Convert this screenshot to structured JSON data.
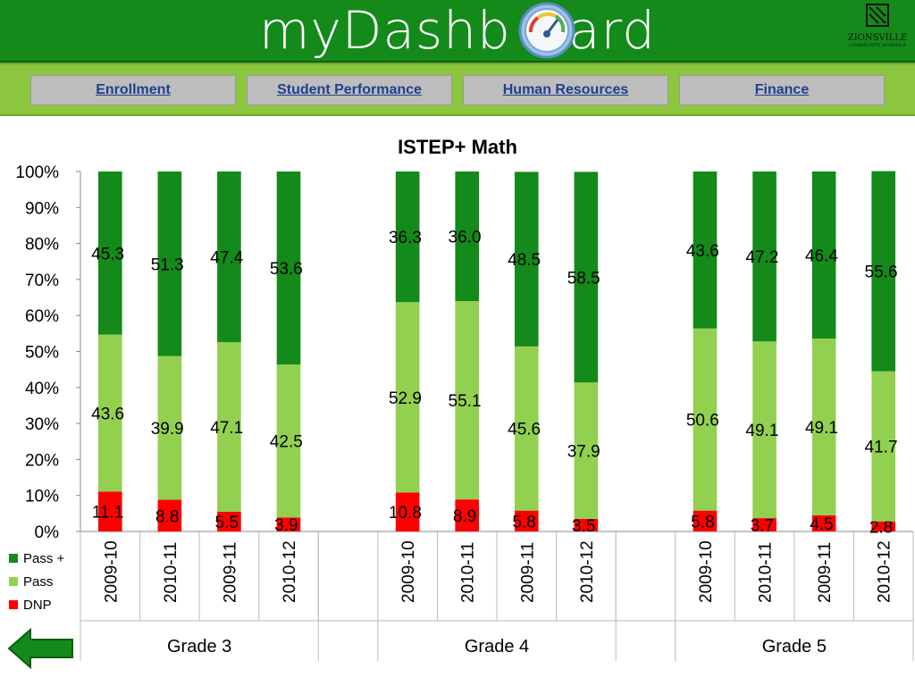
{
  "header": {
    "brand_prefix": "myDashb",
    "brand_suffix": "ard",
    "logo_text": "ZIONSVILLE",
    "logo_subtext": "COMMUNITY SCHOOLS"
  },
  "nav": {
    "items": [
      {
        "label": "Enrollment"
      },
      {
        "label": "Student Performance"
      },
      {
        "label": "Human Resources"
      },
      {
        "label": "Finance"
      }
    ]
  },
  "colors": {
    "pass_plus": "#138a1a",
    "pass": "#92d050",
    "dnp": "#ff0000",
    "header": "#138a1a",
    "nav": "#8cc63f"
  },
  "icons": {
    "gauge": "speedometer-icon",
    "back": "back-arrow-icon",
    "logo": "district-logo"
  },
  "chart_data": {
    "type": "bar",
    "stacked": "percent",
    "title": "ISTEP+ Math",
    "ylim": [
      0,
      100
    ],
    "yticks": [
      "0%",
      "10%",
      "20%",
      "30%",
      "40%",
      "50%",
      "60%",
      "70%",
      "80%",
      "90%",
      "100%"
    ],
    "categories": [
      "2009-10",
      "2010-11",
      "2009-11",
      "2010-12",
      "2009-10",
      "2010-11",
      "2009-11",
      "2010-12",
      "2009-10",
      "2010-11",
      "2009-11",
      "2010-12"
    ],
    "groups": [
      {
        "name": "Grade 3",
        "start": 0,
        "count": 4
      },
      {
        "name": "Grade 4",
        "start": 4,
        "count": 4
      },
      {
        "name": "Grade 5",
        "start": 8,
        "count": 4
      }
    ],
    "series": [
      {
        "name": "DNP",
        "values": [
          11.1,
          8.8,
          5.5,
          3.9,
          10.8,
          8.9,
          5.8,
          3.5,
          5.8,
          3.7,
          4.5,
          2.8
        ],
        "labels": [
          "11.1",
          "8.8",
          "5.5",
          "3.9",
          "10.8",
          "8.9",
          "5.8",
          "3.5",
          "5.8",
          "3.7",
          "4.5",
          "2.8"
        ]
      },
      {
        "name": "Pass",
        "values": [
          43.6,
          39.9,
          47.1,
          42.5,
          52.9,
          55.1,
          45.6,
          37.9,
          50.6,
          49.1,
          49.1,
          41.7
        ],
        "labels": [
          "43.6",
          "39.9",
          "47.1",
          "42.5",
          "52.9",
          "55.1",
          "45.6",
          "37.9",
          "50.6",
          "49.1",
          "49.1",
          "41.7"
        ]
      },
      {
        "name": "Pass +",
        "values": [
          45.3,
          51.3,
          47.4,
          53.6,
          36.3,
          36.0,
          48.5,
          58.5,
          43.6,
          47.2,
          46.4,
          55.6
        ],
        "labels": [
          "45.3",
          "51.3",
          "47.4",
          "53.6",
          "36.3",
          "36.0",
          "48.5",
          "58.5",
          "43.6",
          "47.2",
          "46.4",
          "55.6"
        ]
      }
    ],
    "legend": {
      "placement": "bottom-left",
      "order": [
        "Pass +",
        "Pass",
        "DNP"
      ]
    },
    "grid": false
  }
}
